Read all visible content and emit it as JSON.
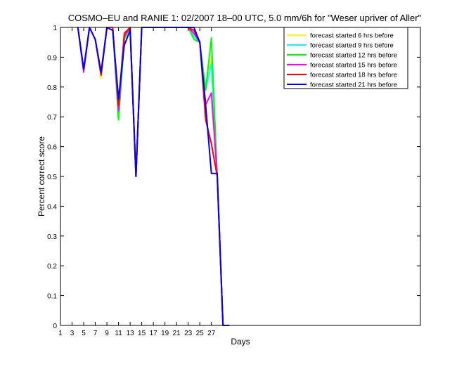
{
  "chart_data": {
    "type": "line",
    "title": "COSMO–EU and RANIE 1: 02/2007 18–00 UTC, 5.0 mm/6h for \"Weser upriver of Aller\"",
    "xlabel": "Days",
    "ylabel": "Percent correct score",
    "xlim": [
      1,
      63
    ],
    "ylim": [
      0,
      1
    ],
    "xticks": [
      1,
      3,
      5,
      7,
      9,
      11,
      13,
      15,
      17,
      19,
      21,
      23,
      25,
      27
    ],
    "yticks": [
      0,
      0.1,
      0.2,
      0.3,
      0.4,
      0.5,
      0.6,
      0.7,
      0.8,
      0.9,
      1
    ],
    "ytick_labels": [
      "0",
      "0.1",
      "0.2",
      "0.3",
      "0.4",
      "0.5",
      "0.6",
      "0.7",
      "0.8",
      "0.9",
      "1"
    ],
    "grid": false,
    "legend_position": "top-right",
    "x": [
      4,
      5,
      6,
      7,
      8,
      9,
      10,
      11,
      12,
      13,
      14,
      15,
      16,
      17,
      18,
      19,
      20,
      21,
      22,
      23,
      24,
      25,
      26,
      27,
      28,
      29,
      30
    ],
    "series": [
      {
        "name": "forecast started 6 hrs before",
        "color": "#ffff00",
        "values": [
          1,
          0.86,
          1,
          0.96,
          0.83,
          1,
          1,
          0.69,
          0.96,
          1,
          0.5,
          1,
          1,
          1,
          1,
          1,
          1,
          1,
          1,
          1,
          0.97,
          0.95,
          0.79,
          0.9,
          0.5,
          0,
          0
        ]
      },
      {
        "name": "forecast started 9 hrs before",
        "color": "#00ffff",
        "values": [
          1,
          0.86,
          1,
          0.96,
          0.84,
          1,
          1,
          0.69,
          0.96,
          1,
          0.5,
          1,
          1,
          1,
          1,
          1,
          1,
          1,
          1,
          1,
          0.97,
          0.95,
          0.79,
          0.88,
          0.5,
          0,
          0
        ]
      },
      {
        "name": "forecast started 12 hrs before",
        "color": "#00ff00",
        "values": [
          1,
          0.86,
          1,
          0.96,
          0.84,
          1,
          1,
          0.69,
          0.96,
          1,
          0.5,
          1,
          1,
          1,
          1,
          1,
          1,
          1,
          1,
          1,
          0.96,
          0.95,
          0.79,
          0.965,
          0.5,
          0,
          0
        ]
      },
      {
        "name": "forecast started 15 hrs before",
        "color": "#ff00ff",
        "values": [
          1,
          0.85,
          1,
          0.96,
          0.84,
          1,
          1,
          0.72,
          0.97,
          1,
          0.5,
          1,
          1,
          1,
          1,
          1,
          1,
          1,
          1,
          1,
          0.98,
          0.95,
          0.74,
          0.78,
          0.5,
          0,
          0
        ]
      },
      {
        "name": "forecast started 18 hrs before",
        "color": "#ff0000",
        "values": [
          1,
          0.86,
          1,
          0.96,
          0.84,
          1,
          1,
          0.74,
          0.98,
          1,
          0.5,
          1,
          1,
          1,
          1,
          1,
          1,
          1,
          1,
          1,
          0.99,
          0.95,
          0.69,
          0.61,
          0.5,
          0,
          0
        ]
      },
      {
        "name": "forecast started 21 hrs before",
        "color": "#0000ff",
        "values": [
          1,
          0.86,
          1,
          0.96,
          0.85,
          1,
          0.99,
          0.76,
          0.94,
          0.99,
          0.5,
          1,
          1,
          1,
          1,
          1,
          1,
          1,
          1,
          1,
          1,
          0.95,
          0.74,
          0.51,
          0.51,
          0,
          0
        ]
      }
    ]
  }
}
